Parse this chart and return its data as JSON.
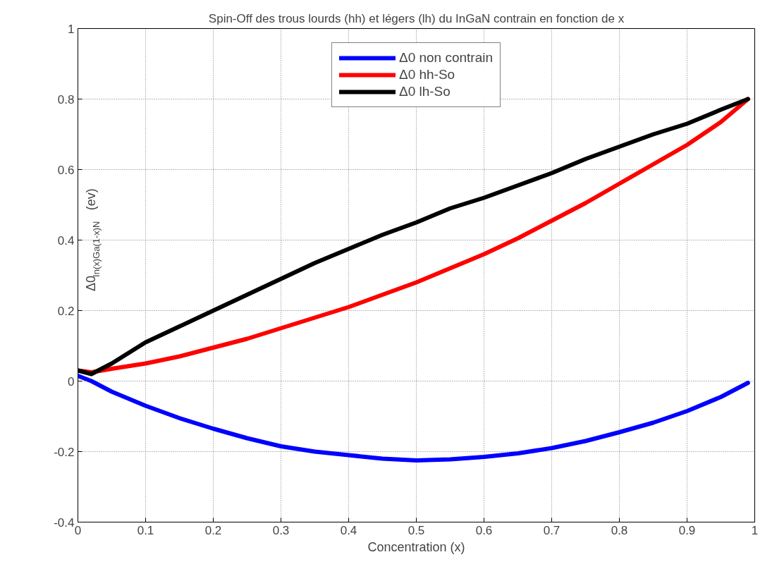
{
  "chart_data": {
    "type": "line",
    "title": "Spin-Off des trous lourds (hh) et légers (lh) du InGaN contrain en fonction de x",
    "xlabel": "Concentration (x)",
    "ylabel": "Δ0$_{In(x)Ga(1-x)N}$ (ev)",
    "x": [
      0,
      0.02,
      0.05,
      0.1,
      0.15,
      0.2,
      0.25,
      0.3,
      0.35,
      0.4,
      0.45,
      0.5,
      0.55,
      0.6,
      0.65,
      0.7,
      0.75,
      0.8,
      0.85,
      0.9,
      0.95,
      0.99
    ],
    "series": [
      {
        "name": "Δ0 non contrain",
        "color": "#0000ff",
        "values": [
          0.015,
          0.0,
          -0.03,
          -0.07,
          -0.105,
          -0.135,
          -0.162,
          -0.185,
          -0.2,
          -0.21,
          -0.22,
          -0.225,
          -0.222,
          -0.215,
          -0.205,
          -0.19,
          -0.17,
          -0.145,
          -0.118,
          -0.085,
          -0.045,
          -0.005
        ]
      },
      {
        "name": "Δ0 hh-So",
        "color": "#ff0000",
        "values": [
          0.03,
          0.025,
          0.035,
          0.05,
          0.07,
          0.095,
          0.12,
          0.15,
          0.18,
          0.21,
          0.245,
          0.28,
          0.32,
          0.36,
          0.405,
          0.455,
          0.505,
          0.56,
          0.615,
          0.67,
          0.735,
          0.8
        ]
      },
      {
        "name": "Δ0 lh-So",
        "color": "#000000",
        "values": [
          0.03,
          0.02,
          0.05,
          0.11,
          0.155,
          0.2,
          0.245,
          0.29,
          0.335,
          0.375,
          0.415,
          0.45,
          0.49,
          0.52,
          0.555,
          0.59,
          0.63,
          0.665,
          0.7,
          0.73,
          0.77,
          0.8
        ]
      }
    ],
    "xlim": [
      0,
      1
    ],
    "ylim": [
      -0.4,
      1
    ],
    "xticks": [
      0,
      0.1,
      0.2,
      0.3,
      0.4,
      0.5,
      0.6,
      0.7,
      0.8,
      0.9,
      1
    ],
    "yticks": [
      -0.4,
      -0.2,
      0,
      0.2,
      0.4,
      0.6,
      0.8,
      1
    ],
    "grid": true,
    "legend": "top",
    "line_style": "solid",
    "marker": "none"
  }
}
